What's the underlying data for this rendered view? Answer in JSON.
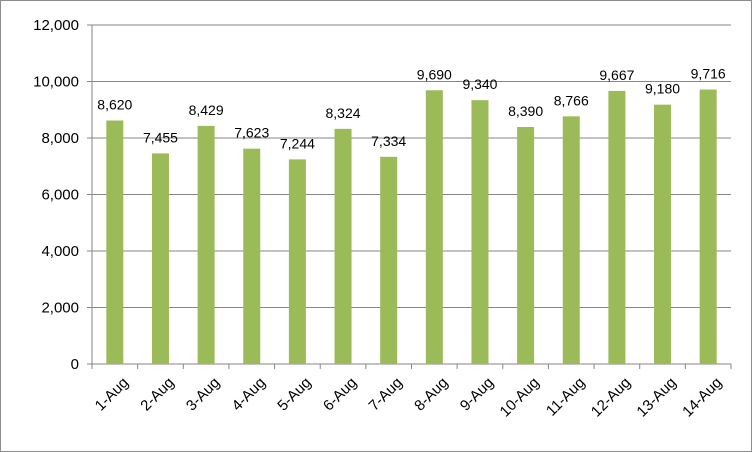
{
  "chart_data": {
    "type": "bar",
    "title": "",
    "xlabel": "",
    "ylabel": "",
    "categories": [
      "1-Aug",
      "2-Aug",
      "3-Aug",
      "4-Aug",
      "5-Aug",
      "6-Aug",
      "7-Aug",
      "8-Aug",
      "9-Aug",
      "10-Aug",
      "11-Aug",
      "12-Aug",
      "13-Aug",
      "14-Aug"
    ],
    "values": [
      8620,
      7455,
      8429,
      7623,
      7244,
      8324,
      7334,
      9690,
      9340,
      8390,
      8766,
      9667,
      9180,
      9716
    ],
    "data_labels": [
      "8,620",
      "7,455",
      "8,429",
      "7,623",
      "7,244",
      "8,324",
      "7,334",
      "9,690",
      "9,340",
      "8,390",
      "8,766",
      "9,667",
      "9,180",
      "9,716"
    ],
    "ylim": [
      0,
      12000
    ],
    "yticks": [
      0,
      2000,
      4000,
      6000,
      8000,
      10000,
      12000
    ],
    "ytick_labels": [
      "0",
      "2,000",
      "4,000",
      "6,000",
      "8,000",
      "10,000",
      "12,000"
    ],
    "grid": true,
    "legend": "none",
    "bar_color": "#9bbb59",
    "grid_color": "#868686"
  }
}
